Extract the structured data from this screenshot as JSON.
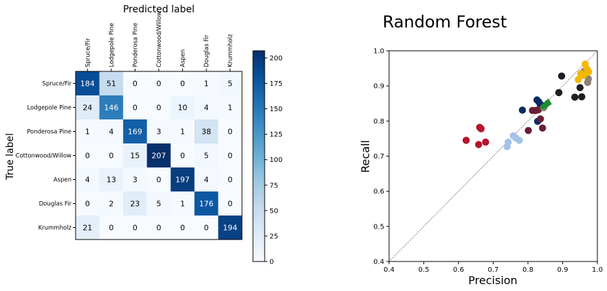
{
  "chart_data": [
    {
      "type": "heatmap",
      "title": "Predicted label",
      "xlabel": "Predicted label",
      "ylabel": "True label",
      "classes": [
        "Spruce/Fir",
        "Lodgepole Pine",
        "Ponderosa Pine",
        "Cottonwood/Willow",
        "Aspen",
        "Douglas Fir",
        "Krummholz"
      ],
      "matrix": [
        [
          184,
          51,
          0,
          0,
          0,
          1,
          5
        ],
        [
          24,
          146,
          0,
          0,
          10,
          4,
          1
        ],
        [
          1,
          4,
          169,
          3,
          1,
          38,
          0
        ],
        [
          0,
          0,
          15,
          207,
          0,
          5,
          0
        ],
        [
          4,
          13,
          3,
          0,
          197,
          4,
          0
        ],
        [
          0,
          2,
          23,
          5,
          1,
          176,
          0
        ],
        [
          21,
          0,
          0,
          0,
          0,
          0,
          194
        ]
      ],
      "colorbar": {
        "range": [
          0,
          207
        ],
        "ticks": [
          0,
          25,
          50,
          75,
          100,
          125,
          150,
          175,
          200
        ],
        "colormap": "Blues"
      }
    },
    {
      "type": "scatter",
      "title": "Random Forest",
      "xlabel": "Precision",
      "ylabel": "Recall",
      "xlim": [
        0.4,
        1.0
      ],
      "ylim": [
        0.4,
        1.0
      ],
      "xticks": [
        "0.4",
        "0.5",
        "0.6",
        "0.7",
        "0.8",
        "0.9",
        "1.0"
      ],
      "yticks": [
        "0.4",
        "0.5",
        "0.6",
        "0.7",
        "0.8",
        "0.9",
        "1.0"
      ],
      "diagonal": true,
      "series": [
        {
          "color": "#b5142e",
          "marker": "circle",
          "points": [
            [
              0.622,
              0.745
            ],
            [
              0.658,
              0.733
            ],
            [
              0.661,
              0.782
            ],
            [
              0.665,
              0.778
            ],
            [
              0.678,
              0.74
            ]
          ]
        },
        {
          "color": "#a5c2e8",
          "marker": "circle",
          "points": [
            [
              0.74,
              0.727
            ],
            [
              0.743,
              0.74
            ],
            [
              0.758,
              0.758
            ],
            [
              0.765,
              0.752
            ],
            [
              0.775,
              0.745
            ]
          ]
        },
        {
          "color": "#0c2a63",
          "marker": "circle",
          "points": [
            [
              0.784,
              0.831
            ],
            [
              0.826,
              0.86
            ],
            [
              0.831,
              0.855
            ],
            [
              0.835,
              0.848
            ],
            [
              0.839,
              0.845
            ],
            [
              0.828,
              0.799
            ]
          ]
        },
        {
          "color": "#6b1d35",
          "marker": "circle",
          "points": [
            [
              0.801,
              0.773
            ],
            [
              0.813,
              0.83
            ],
            [
              0.822,
              0.83
            ],
            [
              0.83,
              0.832
            ],
            [
              0.836,
              0.806
            ],
            [
              0.842,
              0.78
            ]
          ]
        },
        {
          "color": "#1f1f1f",
          "marker": "circle",
          "points": [
            [
              0.889,
              0.881
            ],
            [
              0.897,
              0.928
            ],
            [
              0.935,
              0.868
            ],
            [
              0.95,
              0.895
            ],
            [
              0.955,
              0.869
            ],
            [
              0.958,
              0.932
            ]
          ]
        },
        {
          "color": "#8d8275",
          "marker": "circle",
          "points": [
            [
              0.962,
              0.942
            ],
            [
              0.972,
              0.91
            ],
            [
              0.974,
              0.92
            ],
            [
              0.845,
              0.838
            ]
          ]
        },
        {
          "color": "#f4b800",
          "marker": "circle",
          "points": [
            [
              0.945,
              0.918
            ],
            [
              0.952,
              0.935
            ],
            [
              0.96,
              0.93
            ],
            [
              0.965,
              0.962
            ],
            [
              0.97,
              0.948
            ],
            [
              0.975,
              0.94
            ]
          ]
        },
        {
          "color": "#1e8c2e",
          "marker": "triangle",
          "points": [
            [
              0.843,
              0.84
            ],
            [
              0.847,
              0.843
            ],
            [
              0.85,
              0.846
            ],
            [
              0.853,
              0.849
            ],
            [
              0.856,
              0.851
            ],
            [
              0.859,
              0.853
            ]
          ]
        }
      ]
    }
  ]
}
